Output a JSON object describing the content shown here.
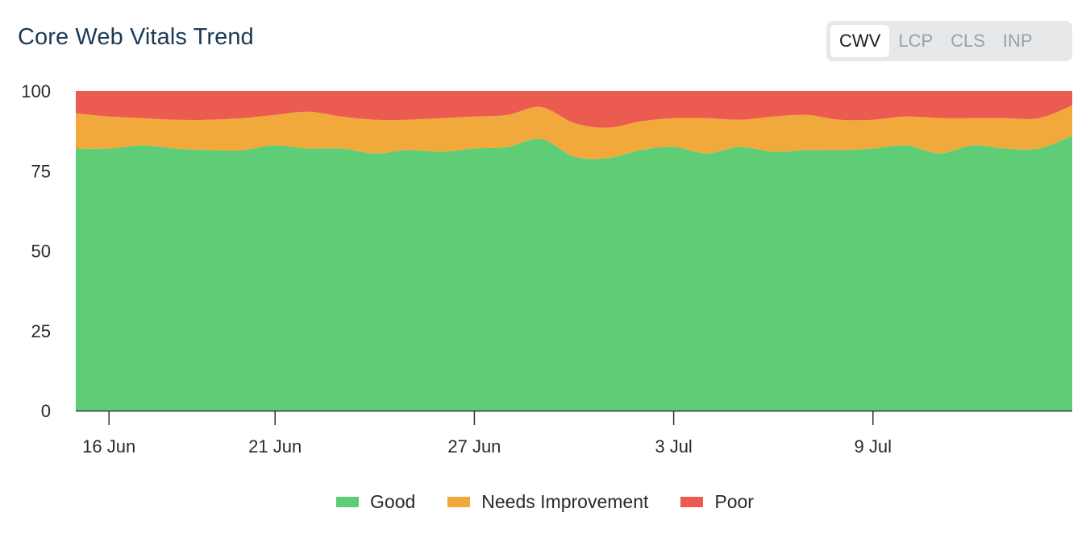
{
  "header": {
    "title": "Core Web Vitals Trend"
  },
  "tabs": [
    {
      "label": "CWV",
      "active": true
    },
    {
      "label": "LCP",
      "active": false
    },
    {
      "label": "CLS",
      "active": false
    },
    {
      "label": "INP",
      "active": false
    }
  ],
  "colors": {
    "good": "#5ecd75",
    "needs": "#f2a93b",
    "poor": "#ec5b4f"
  },
  "chart_data": {
    "type": "area",
    "stacked": true,
    "x": [
      "2024-06-15",
      "2024-06-16",
      "2024-06-17",
      "2024-06-18",
      "2024-06-19",
      "2024-06-20",
      "2024-06-21",
      "2024-06-22",
      "2024-06-23",
      "2024-06-24",
      "2024-06-25",
      "2024-06-26",
      "2024-06-27",
      "2024-06-28",
      "2024-06-29",
      "2024-06-30",
      "2024-07-01",
      "2024-07-02",
      "2024-07-03",
      "2024-07-04",
      "2024-07-05",
      "2024-07-06",
      "2024-07-07",
      "2024-07-08",
      "2024-07-09",
      "2024-07-10",
      "2024-07-11",
      "2024-07-12",
      "2024-07-13",
      "2024-07-14",
      "2024-07-15"
    ],
    "series": [
      {
        "name": "Good",
        "values": [
          82,
          82,
          83,
          82,
          81.5,
          81.5,
          83,
          82,
          82,
          80.5,
          81.5,
          81,
          82,
          82.5,
          85,
          79.5,
          79,
          81.5,
          82.5,
          80.5,
          82.5,
          81,
          81.5,
          81.5,
          82,
          83,
          80.5,
          83,
          82,
          82,
          86
        ]
      },
      {
        "name": "Needs Improvement",
        "values": [
          11,
          10,
          8.5,
          9,
          9.5,
          10,
          9.5,
          11.5,
          10,
          10.5,
          9.5,
          10.5,
          10,
          10,
          10,
          10.5,
          9.5,
          9,
          9,
          11,
          8.5,
          11,
          11,
          9.5,
          9,
          9,
          11,
          8.5,
          9.5,
          9.5,
          9.5
        ]
      },
      {
        "name": "Poor",
        "values": [
          7,
          8,
          8.5,
          9,
          9,
          8.5,
          7.5,
          6.5,
          8,
          9,
          9,
          8.5,
          8,
          7.5,
          5,
          10,
          11.5,
          9.5,
          8.5,
          8.5,
          9,
          8,
          7.5,
          9,
          9,
          8,
          8.5,
          8.5,
          8.5,
          8.5,
          4.5
        ]
      }
    ],
    "xticks": [
      {
        "date": "2024-06-16",
        "label": "16 Jun"
      },
      {
        "date": "2024-06-21",
        "label": "21 Jun"
      },
      {
        "date": "2024-06-27",
        "label": "27 Jun"
      },
      {
        "date": "2024-07-03",
        "label": "3 Jul"
      },
      {
        "date": "2024-07-09",
        "label": "9 Jul"
      }
    ],
    "yticks": [
      0,
      25,
      50,
      75,
      100
    ],
    "ylim": [
      0,
      100
    ],
    "grid": false,
    "legend": "bottom-center"
  }
}
